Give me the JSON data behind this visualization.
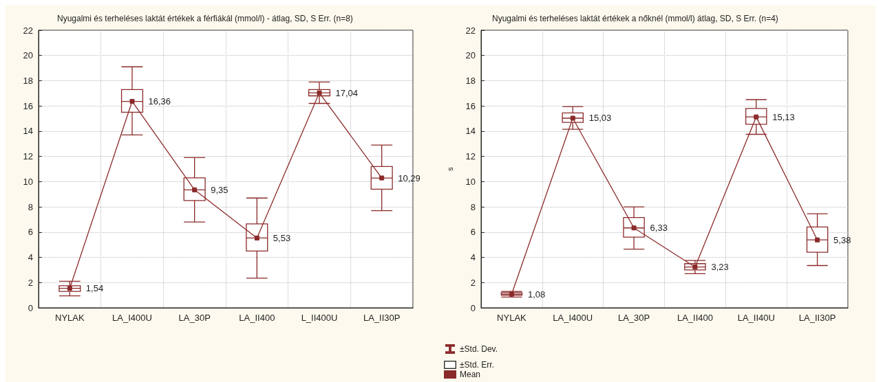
{
  "chart_data": [
    {
      "type": "box",
      "title": "Nyugalmi és terheléses laktát értékek a férfiákál (mmol/l) - átlag, SD, S Err. (n=8)",
      "categories": [
        "NYLAK",
        "LA_I400U",
        "LA_30P",
        "LA_II400",
        "L_II400U",
        "LA_II30P"
      ],
      "ylim": [
        0,
        22
      ],
      "yticks": [
        0,
        2,
        4,
        6,
        8,
        10,
        12,
        14,
        16,
        18,
        20,
        22
      ],
      "grid": true,
      "series": [
        {
          "color": "#8b2a2a",
          "boxes": [
            {
              "low": 0.95,
              "q1": 1.3,
              "median": 1.54,
              "q3": 1.75,
              "high": 2.1
            },
            {
              "low": 13.7,
              "q1": 15.5,
              "median": 16.36,
              "q3": 17.3,
              "high": 19.1
            },
            {
              "low": 6.8,
              "q1": 8.5,
              "median": 9.35,
              "q3": 10.3,
              "high": 11.9
            },
            {
              "low": 2.35,
              "q1": 4.5,
              "median": 5.53,
              "q3": 6.65,
              "high": 8.7
            },
            {
              "low": 16.2,
              "q1": 16.8,
              "median": 17.04,
              "q3": 17.3,
              "high": 17.9
            },
            {
              "low": 7.7,
              "q1": 9.4,
              "median": 10.29,
              "q3": 11.2,
              "high": 12.9
            }
          ]
        },
        {
          "type": "line",
          "marker": "square",
          "color": "#8b2a2a",
          "values": [
            1.54,
            16.36,
            9.35,
            5.53,
            17.04,
            10.29
          ],
          "value_labels": [
            "1,54",
            "16,36",
            "9,35",
            "5,53",
            "17,04",
            "10,29"
          ]
        }
      ]
    },
    {
      "type": "box",
      "title": "Nyugalmi és terheléses laktát értékek a nőknél (mmol/l) átlag, SD, S Err. (n=4)",
      "ylabel": "s",
      "categories": [
        "NYLAK",
        "LA_I400U",
        "LA_30P",
        "LA_II400",
        "LA_II40U",
        "LA_II30P"
      ],
      "ylim": [
        0,
        22
      ],
      "yticks": [
        0,
        2,
        4,
        6,
        8,
        10,
        12,
        14,
        16,
        18,
        20,
        22
      ],
      "grid": true,
      "legend": "bottom left",
      "annotations": [
        "±Std. Err."
      ],
      "series": [
        {
          "name": "±Std. Dev.",
          "color": "#8b2a2a",
          "boxes": [
            {
              "low": 0.85,
              "q1": 1.0,
              "median": 1.08,
              "q3": 1.2,
              "high": 1.3
            },
            {
              "low": 14.15,
              "q1": 14.7,
              "median": 15.03,
              "q3": 15.45,
              "high": 15.95
            },
            {
              "low": 4.65,
              "q1": 5.6,
              "median": 6.33,
              "q3": 7.15,
              "high": 8.0
            },
            {
              "low": 2.7,
              "q1": 3.0,
              "median": 3.23,
              "q3": 3.5,
              "high": 3.75
            },
            {
              "low": 13.75,
              "q1": 14.55,
              "median": 15.13,
              "q3": 15.8,
              "high": 16.5
            },
            {
              "low": 3.35,
              "q1": 4.4,
              "median": 5.38,
              "q3": 6.4,
              "high": 7.45
            }
          ]
        },
        {
          "name": "Mean",
          "type": "line",
          "marker": "square",
          "color": "#8b2a2a",
          "values": [
            1.08,
            15.03,
            6.33,
            3.23,
            15.13,
            5.38
          ],
          "value_labels": [
            "1,08",
            "15,03",
            "6,33",
            "3,23",
            "15,13",
            "5,38"
          ]
        }
      ]
    }
  ]
}
